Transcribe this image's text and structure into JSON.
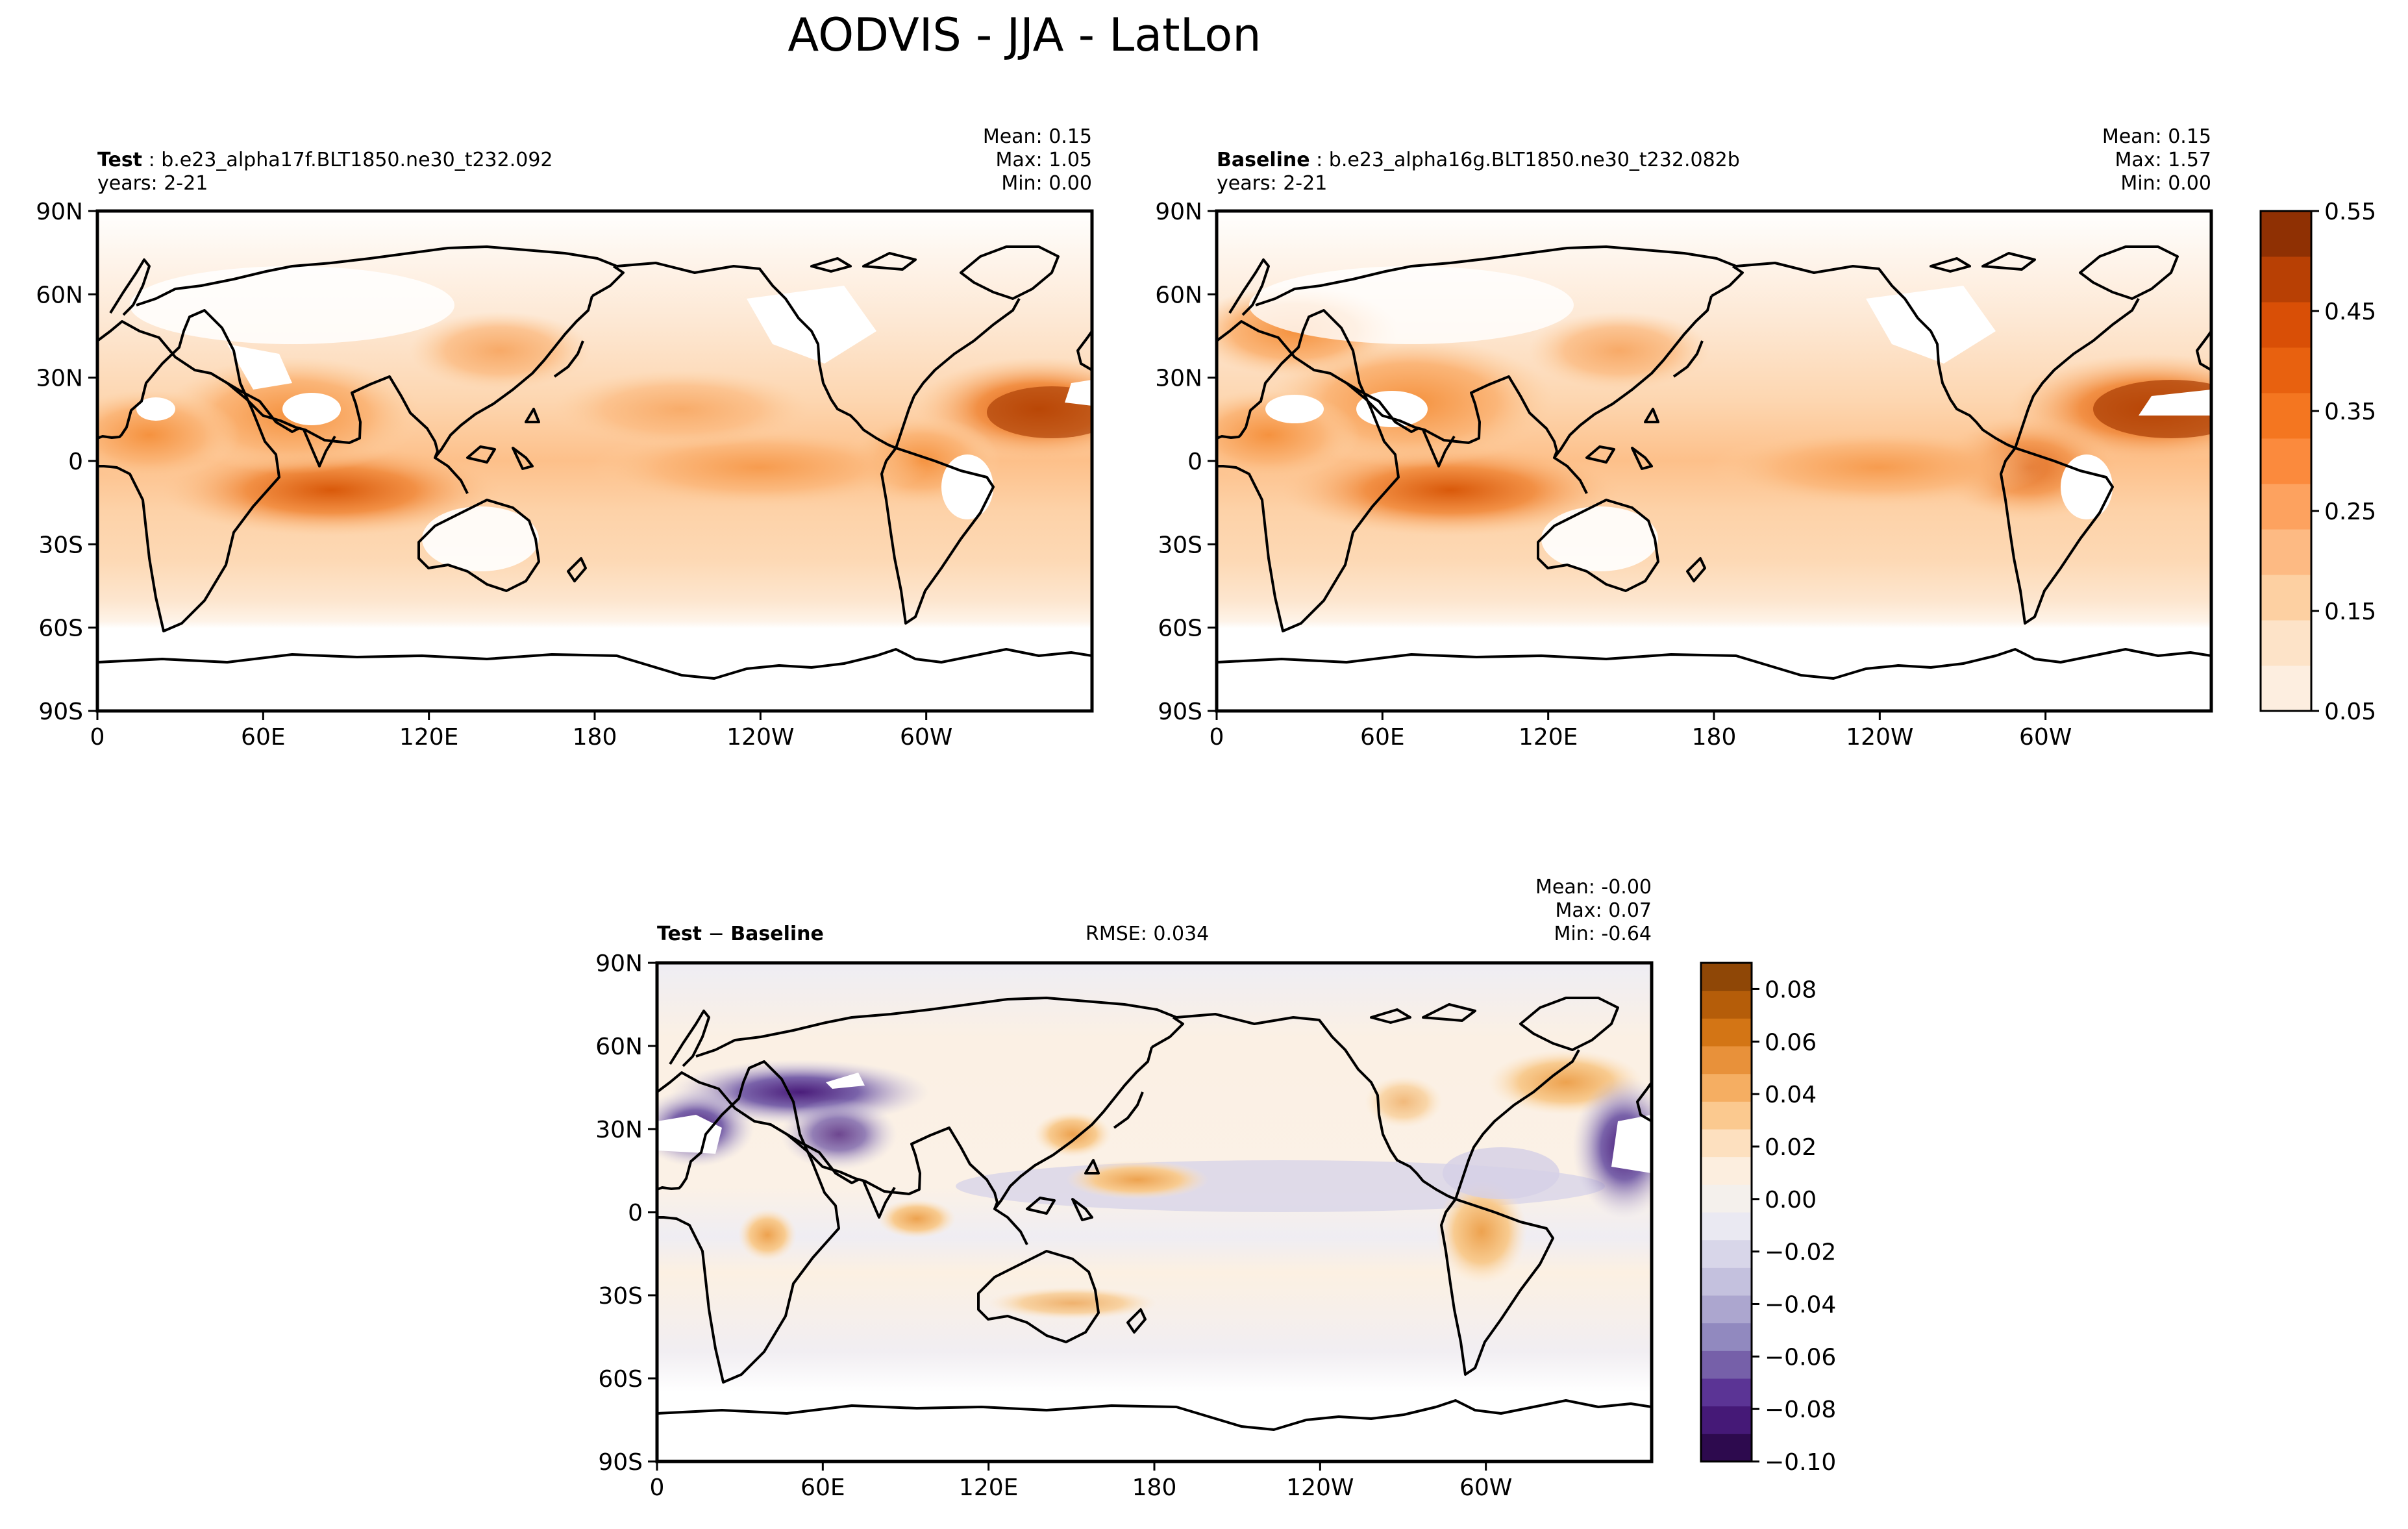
{
  "suptitle": "AODVIS - JJA - LatLon",
  "chart_data": [
    {
      "type": "heatmap",
      "role": "test",
      "label_bold": "Test",
      "case": "b.e23_alpha17f.BLT1850.ne30_t232.092",
      "years": "years: 2-21",
      "stats": {
        "mean": "Mean:  0.15",
        "max": "Max:  1.05",
        "min": "Min:  0.00"
      },
      "xlim": [
        0,
        360
      ],
      "ylim": [
        -90,
        90
      ],
      "xticks": [
        "0",
        "60E",
        "120E",
        "180",
        "120W",
        "60W"
      ],
      "yticks": [
        "90N",
        "60N",
        "30N",
        "0",
        "30S",
        "60S",
        "90S"
      ],
      "colormap": "Oranges",
      "levels_range": [
        0.05,
        0.55
      ]
    },
    {
      "type": "heatmap",
      "role": "baseline",
      "label_bold": "Baseline",
      "case": "b.e23_alpha16g.BLT1850.ne30_t232.082b",
      "years": "years: 2-21",
      "stats": {
        "mean": "Mean:  0.15",
        "max": "Max:  1.57",
        "min": "Min:  0.00"
      },
      "xlim": [
        0,
        360
      ],
      "ylim": [
        -90,
        90
      ],
      "xticks": [
        "0",
        "60E",
        "120E",
        "180",
        "120W",
        "60W"
      ],
      "yticks": [
        "90N",
        "60N",
        "30N",
        "0",
        "30S",
        "60S",
        "90S"
      ],
      "colormap": "Oranges",
      "levels_range": [
        0.05,
        0.55
      ]
    },
    {
      "type": "heatmap",
      "role": "difference",
      "label_a": "Test",
      "label_sep": " − ",
      "label_b": "Baseline",
      "rmse": "RMSE: 0.034",
      "stats": {
        "mean": "Mean: -0.00",
        "max": "Max:  0.07",
        "min": "Min: -0.64"
      },
      "xlim": [
        0,
        360
      ],
      "ylim": [
        -90,
        90
      ],
      "xticks": [
        "0",
        "60E",
        "120E",
        "180",
        "120W",
        "60W"
      ],
      "yticks": [
        "90N",
        "60N",
        "30N",
        "0",
        "30S",
        "60S",
        "90S"
      ],
      "colormap": "PuOr_r",
      "levels_range": [
        -0.1,
        0.09
      ]
    }
  ],
  "colorbars": {
    "main": {
      "ticks": [
        "0.55",
        "0.45",
        "0.35",
        "0.25",
        "0.15",
        "0.05"
      ],
      "colors": [
        "#fdeee0",
        "#fde3c8",
        "#fdd0a2",
        "#fdba83",
        "#fda25f",
        "#fb8a3d",
        "#f47620",
        "#e8610f",
        "#d94f06",
        "#b84004",
        "#8f3003"
      ]
    },
    "diff": {
      "ticks": [
        "0.08",
        "0.06",
        "0.04",
        "0.02",
        "0.00",
        "−0.02",
        "−0.04",
        "−0.06",
        "−0.08",
        "−0.10"
      ],
      "colors": [
        "#2d0a4e",
        "#451977",
        "#5b3495",
        "#7660a9",
        "#9189bf",
        "#aca6cf",
        "#c4c1de",
        "#d8d6e9",
        "#eae9f2",
        "#f4f0ec",
        "#fceedf",
        "#fde0bf",
        "#fbc98f",
        "#f5ae62",
        "#e8913a",
        "#d37515",
        "#b55d09",
        "#8f4706"
      ]
    }
  }
}
